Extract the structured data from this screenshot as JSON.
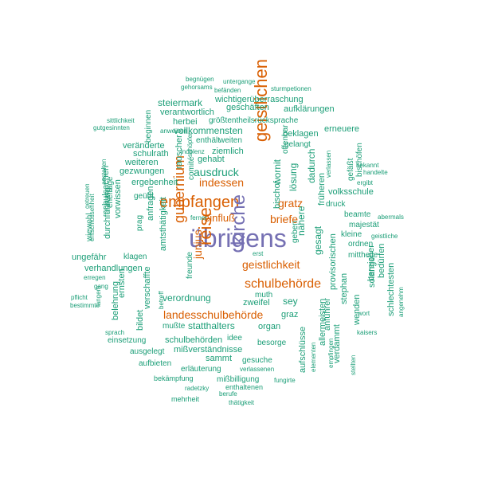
{
  "colors": {
    "teal": "#1b9e77",
    "orange": "#d95f02",
    "purple": "#7570b3"
  },
  "words": [
    {
      "text": "übrigens",
      "color": "#7570b3"
    },
    {
      "text": "empfangen",
      "color": "#d95f02"
    },
    {
      "text": "kirche",
      "color": "#7570b3"
    },
    {
      "text": "geistlichen",
      "color": "#d95f02"
    },
    {
      "text": "gubernium",
      "color": "#d95f02"
    },
    {
      "text": "reise",
      "color": "#d95f02"
    },
    {
      "text": "schulbehörde",
      "color": "#d95f02"
    },
    {
      "text": "geistlichkeit",
      "color": "#d95f02"
    },
    {
      "text": "landesschulbehörde",
      "color": "#d95f02"
    },
    {
      "text": "indessen",
      "color": "#d95f02"
    },
    {
      "text": "gratz",
      "color": "#d95f02"
    },
    {
      "text": "briefe",
      "color": "#d95f02"
    },
    {
      "text": "einfluß",
      "color": "#d95f02"
    },
    {
      "text": "junius",
      "color": "#d95f02"
    },
    {
      "text": "ausdruck",
      "color": "#1b9e77"
    },
    {
      "text": "amtsthätigkeit",
      "color": "#1b9e77"
    },
    {
      "text": "verordnung",
      "color": "#1b9e77"
    },
    {
      "text": "statthalters",
      "color": "#1b9e77"
    },
    {
      "text": "sey",
      "color": "#1b9e77"
    },
    {
      "text": "zweifel",
      "color": "#1b9e77"
    },
    {
      "text": "wornit",
      "color": "#1b9e77"
    },
    {
      "text": "lösung",
      "color": "#1b9e77"
    },
    {
      "text": "nähere",
      "color": "#1b9e77"
    },
    {
      "text": "gesagt",
      "color": "#1b9e77"
    },
    {
      "text": "dadurch",
      "color": "#1b9e77"
    },
    {
      "text": "vollkommensten",
      "color": "#1b9e77"
    },
    {
      "text": "steiermark",
      "color": "#1b9e77"
    },
    {
      "text": "geschäften",
      "color": "#1b9e77"
    },
    {
      "text": "verantwortlich",
      "color": "#1b9e77"
    },
    {
      "text": "wichtigerüberraschung",
      "color": "#1b9e77"
    },
    {
      "text": "aufklärungen",
      "color": "#1b9e77"
    },
    {
      "text": "größtentheilsrücksprache",
      "color": "#1b9e77"
    },
    {
      "text": "herbei",
      "color": "#1b9e77"
    },
    {
      "text": "beklagen",
      "color": "#1b9e77"
    },
    {
      "text": "erneuere",
      "color": "#1b9e77"
    },
    {
      "text": "gelangt",
      "color": "#1b9e77"
    },
    {
      "text": "ziemlich",
      "color": "#1b9e77"
    },
    {
      "text": "gehabt",
      "color": "#1b9e77"
    },
    {
      "text": "enthält",
      "color": "#1b9e77"
    },
    {
      "text": "weiten",
      "color": "#1b9e77"
    },
    {
      "text": "veränderte",
      "color": "#1b9e77"
    },
    {
      "text": "schulrath",
      "color": "#1b9e77"
    },
    {
      "text": "weiteren",
      "color": "#1b9e77"
    },
    {
      "text": "gezwungen",
      "color": "#1b9e77"
    },
    {
      "text": "ergebenheit",
      "color": "#1b9e77"
    },
    {
      "text": "volksschule",
      "color": "#1b9e77"
    },
    {
      "text": "druck",
      "color": "#1b9e77"
    },
    {
      "text": "beamte",
      "color": "#1b9e77"
    },
    {
      "text": "majestät",
      "color": "#1b9e77"
    },
    {
      "text": "kleine",
      "color": "#1b9e77"
    },
    {
      "text": "ordnen",
      "color": "#1b9e77"
    },
    {
      "text": "mittheile",
      "color": "#1b9e77"
    },
    {
      "text": "geübt",
      "color": "#1b9e77"
    },
    {
      "text": "prag",
      "color": "#1b9e77"
    },
    {
      "text": "ungefähr",
      "color": "#1b9e77"
    },
    {
      "text": "klagen",
      "color": "#1b9e77"
    },
    {
      "text": "verhandlungen",
      "color": "#1b9e77"
    },
    {
      "text": "freunde",
      "color": "#1b9e77"
    },
    {
      "text": "muth",
      "color": "#1b9e77"
    },
    {
      "text": "graz",
      "color": "#1b9e77"
    },
    {
      "text": "organ",
      "color": "#1b9e77"
    },
    {
      "text": "mußte",
      "color": "#1b9e77"
    },
    {
      "text": "einsetzung",
      "color": "#1b9e77"
    },
    {
      "text": "schulbehörden",
      "color": "#1b9e77"
    },
    {
      "text": "idee",
      "color": "#1b9e77"
    },
    {
      "text": "besorge",
      "color": "#1b9e77"
    },
    {
      "text": "ausgelegt",
      "color": "#1b9e77"
    },
    {
      "text": "mißverständnisse",
      "color": "#1b9e77"
    },
    {
      "text": "sammt",
      "color": "#1b9e77"
    },
    {
      "text": "aufbieten",
      "color": "#1b9e77"
    },
    {
      "text": "gesuche",
      "color": "#1b9e77"
    },
    {
      "text": "erläuterung",
      "color": "#1b9e77"
    },
    {
      "text": "mißbilligung",
      "color": "#1b9e77"
    },
    {
      "text": "verlassenen",
      "color": "#1b9e77"
    },
    {
      "text": "bekämpfung",
      "color": "#1b9e77"
    },
    {
      "text": "enthaltenen",
      "color": "#1b9e77"
    },
    {
      "text": "fungirte",
      "color": "#1b9e77"
    },
    {
      "text": "radetzky",
      "color": "#1b9e77"
    },
    {
      "text": "berufe",
      "color": "#1b9e77"
    },
    {
      "text": "mehrheit",
      "color": "#1b9e77"
    },
    {
      "text": "thätigkeit",
      "color": "#1b9e77"
    },
    {
      "text": "begnügen",
      "color": "#1b9e77"
    },
    {
      "text": "gehorsams",
      "color": "#1b9e77"
    },
    {
      "text": "untergange",
      "color": "#1b9e77"
    },
    {
      "text": "befänden",
      "color": "#1b9e77"
    },
    {
      "text": "sturmpetionen",
      "color": "#1b9e77"
    },
    {
      "text": "sittlichkeit",
      "color": "#1b9e77"
    },
    {
      "text": "gutgesinnten",
      "color": "#1b9e77"
    },
    {
      "text": "anweisen",
      "color": "#1b9e77"
    },
    {
      "text": "bekannt",
      "color": "#1b9e77"
    },
    {
      "text": "handelte",
      "color": "#1b9e77"
    },
    {
      "text": "ergibt",
      "color": "#1b9e77"
    },
    {
      "text": "abermals",
      "color": "#1b9e77"
    },
    {
      "text": "geistliche",
      "color": "#1b9e77"
    },
    {
      "text": "wort",
      "color": "#1b9e77"
    },
    {
      "text": "kaisers",
      "color": "#1b9e77"
    },
    {
      "text": "ferner",
      "color": "#1b9e77"
    },
    {
      "text": "erst",
      "color": "#1b9e77"
    },
    {
      "text": "erregen",
      "color": "#1b9e77"
    },
    {
      "text": "gang",
      "color": "#1b9e77"
    },
    {
      "text": "pflicht",
      "color": "#1b9e77"
    },
    {
      "text": "bestimmte",
      "color": "#1b9e77"
    },
    {
      "text": "sprach",
      "color": "#1b9e77"
    },
    {
      "text": "beginnen",
      "color": "#1b9e77"
    },
    {
      "text": "rauscher",
      "color": "#1b9e77"
    },
    {
      "text": "comité",
      "color": "#1b9e77"
    },
    {
      "text": "bischof",
      "color": "#1b9e77"
    },
    {
      "text": "offenbar",
      "color": "#1b9e77"
    },
    {
      "text": "früheren",
      "color": "#1b9e77"
    },
    {
      "text": "gefäßt",
      "color": "#1b9e77"
    },
    {
      "text": "bischöfen",
      "color": "#1b9e77"
    },
    {
      "text": "verlassen",
      "color": "#1b9e77"
    },
    {
      "text": "ernsten",
      "color": "#1b9e77"
    },
    {
      "text": "bildet",
      "color": "#1b9e77"
    },
    {
      "text": "verschaffte",
      "color": "#1b9e77"
    },
    {
      "text": "belehrung",
      "color": "#1b9e77"
    },
    {
      "text": "anfragen",
      "color": "#1b9e77"
    },
    {
      "text": "vorwissen",
      "color": "#1b9e77"
    },
    {
      "text": "durchführung",
      "color": "#1b9e77"
    },
    {
      "text": "wiewohl",
      "color": "#1b9e77"
    },
    {
      "text": "schulsachen",
      "color": "#1b9e77"
    },
    {
      "text": "ehefrage",
      "color": "#1b9e77"
    },
    {
      "text": "anstalten",
      "color": "#1b9e77"
    },
    {
      "text": "entschlossenheit",
      "color": "#1b9e77"
    },
    {
      "text": "getreuen",
      "color": "#1b9e77"
    },
    {
      "text": "langem",
      "color": "#1b9e77"
    },
    {
      "text": "betreff",
      "color": "#1b9e77"
    },
    {
      "text": "geben",
      "color": "#1b9e77"
    },
    {
      "text": "provisorischen",
      "color": "#1b9e77"
    },
    {
      "text": "stephan",
      "color": "#1b9e77"
    },
    {
      "text": "anführer",
      "color": "#1b9e77"
    },
    {
      "text": "wenden",
      "color": "#1b9e77"
    },
    {
      "text": "bereicher",
      "color": "#1b9e77"
    },
    {
      "text": "solange",
      "color": "#1b9e77"
    },
    {
      "text": "bedürfen",
      "color": "#1b9e77"
    },
    {
      "text": "schlechtesten",
      "color": "#1b9e77"
    },
    {
      "text": "angenehm",
      "color": "#1b9e77"
    },
    {
      "text": "allermeisten",
      "color": "#1b9e77"
    },
    {
      "text": "aufschlüsse",
      "color": "#1b9e77"
    },
    {
      "text": "elementen",
      "color": "#1b9e77"
    },
    {
      "text": "verdammt",
      "color": "#1b9e77"
    },
    {
      "text": "empfingen",
      "color": "#1b9e77"
    },
    {
      "text": "stellten",
      "color": "#1b9e77"
    },
    {
      "text": "indolenz",
      "color": "#1b9e77"
    },
    {
      "text": "schöpfer",
      "color": "#1b9e77"
    },
    {
      "text": "treuer",
      "color": "#1b9e77"
    }
  ]
}
